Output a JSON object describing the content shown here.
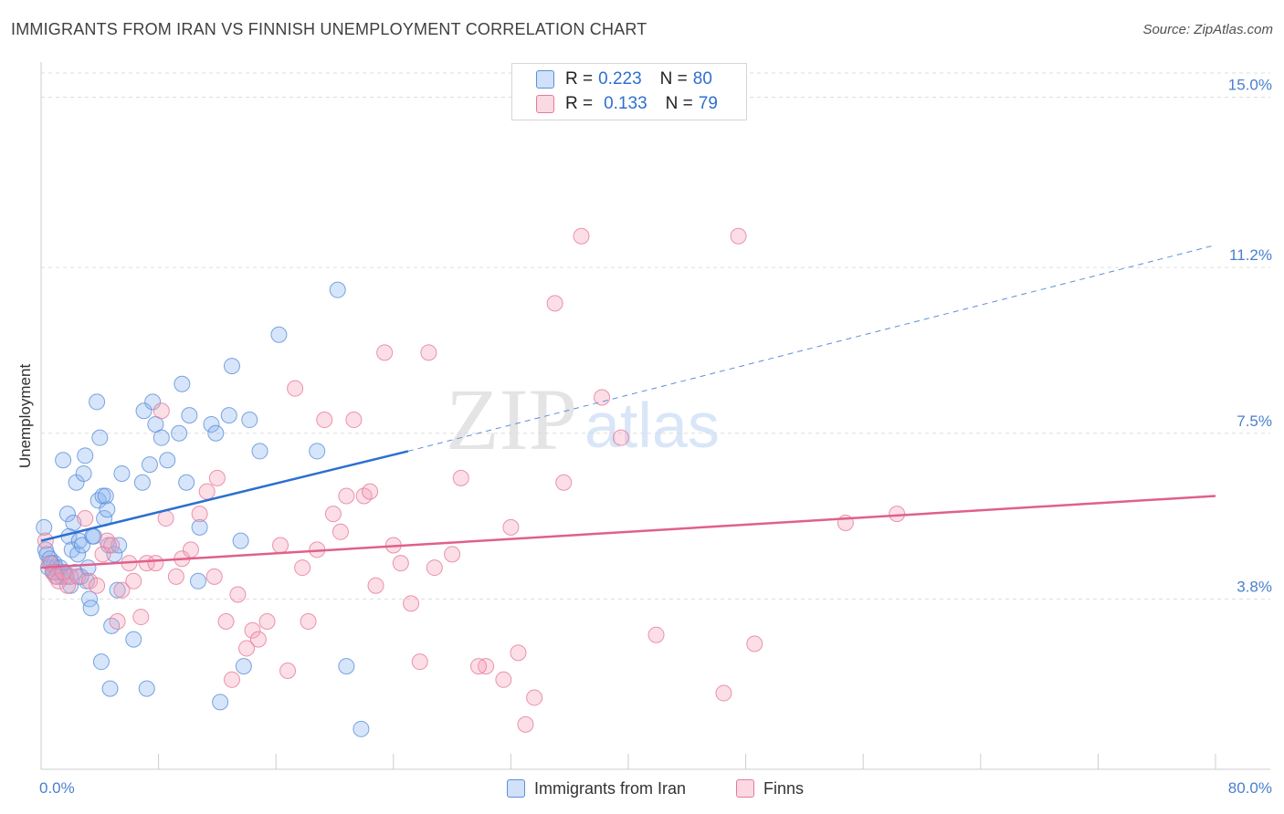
{
  "title": "IMMIGRANTS FROM IRAN VS FINNISH UNEMPLOYMENT CORRELATION CHART",
  "source": "Source: ZipAtlas.com",
  "watermark": {
    "zip": "ZIP",
    "atlas": "atlas"
  },
  "legend": {
    "rows": [
      {
        "r_label": "R =",
        "r_value": "0.223",
        "n_label": "N =",
        "n_value": "80",
        "color": "#8ab4f0"
      },
      {
        "r_label": "R =",
        "r_value": "0.133",
        "n_label": "N =",
        "n_value": "79",
        "color": "#f5a0b8"
      }
    ]
  },
  "bottom_legend": [
    {
      "label": "Immigrants from Iran",
      "color": "#8ab4f0"
    },
    {
      "label": "Finns",
      "color": "#f5a0b8"
    }
  ],
  "chart_data": {
    "type": "scatter",
    "title": "IMMIGRANTS FROM IRAN VS FINNISH UNEMPLOYMENT CORRELATION CHART",
    "xlabel": "",
    "ylabel": "Unemployment",
    "xlim": [
      0,
      80
    ],
    "ylim": [
      0,
      15.5
    ],
    "x_tick_labels": [
      {
        "value": 0,
        "label": "0.0%"
      },
      {
        "value": 80,
        "label": "80.0%"
      }
    ],
    "y_tick_labels": [
      {
        "value": 3.8,
        "label": "3.8%"
      },
      {
        "value": 7.5,
        "label": "7.5%"
      },
      {
        "value": 11.2,
        "label": "11.2%"
      },
      {
        "value": 15.0,
        "label": "15.0%"
      }
    ],
    "series": [
      {
        "name": "Immigrants from Iran",
        "color": "#8ab4f0",
        "stroke": "#5b8fd8",
        "trend": {
          "x0": 0,
          "y0": 5.1,
          "x1": 25,
          "y1": 7.1,
          "x_ext": 80,
          "y_ext": 11.7
        },
        "points": [
          [
            0.2,
            5.4
          ],
          [
            0.3,
            4.9
          ],
          [
            0.4,
            4.8
          ],
          [
            0.5,
            4.5
          ],
          [
            0.6,
            4.7
          ],
          [
            0.8,
            4.4
          ],
          [
            0.9,
            4.6
          ],
          [
            1.0,
            4.5
          ],
          [
            1.2,
            4.4
          ],
          [
            1.4,
            4.3
          ],
          [
            1.5,
            6.9
          ],
          [
            1.6,
            4.4
          ],
          [
            1.8,
            5.7
          ],
          [
            1.9,
            5.2
          ],
          [
            2.0,
            4.1
          ],
          [
            2.1,
            4.9
          ],
          [
            2.2,
            5.5
          ],
          [
            2.4,
            6.4
          ],
          [
            2.5,
            4.8
          ],
          [
            2.6,
            5.1
          ],
          [
            2.8,
            5.0
          ],
          [
            2.9,
            6.6
          ],
          [
            3.0,
            7.0
          ],
          [
            3.1,
            4.2
          ],
          [
            3.3,
            3.8
          ],
          [
            3.4,
            3.6
          ],
          [
            3.6,
            5.2
          ],
          [
            3.8,
            8.2
          ],
          [
            3.9,
            6.0
          ],
          [
            4.0,
            7.4
          ],
          [
            4.1,
            2.4
          ],
          [
            4.2,
            6.1
          ],
          [
            4.3,
            5.6
          ],
          [
            4.5,
            5.8
          ],
          [
            4.6,
            5.0
          ],
          [
            4.7,
            1.8
          ],
          [
            4.8,
            3.2
          ],
          [
            5.0,
            4.8
          ],
          [
            5.2,
            4.0
          ],
          [
            5.3,
            5.0
          ],
          [
            5.5,
            6.6
          ],
          [
            6.3,
            2.9
          ],
          [
            6.9,
            6.4
          ],
          [
            7.0,
            8.0
          ],
          [
            7.2,
            1.8
          ],
          [
            7.4,
            6.8
          ],
          [
            7.6,
            8.2
          ],
          [
            7.8,
            7.7
          ],
          [
            8.2,
            7.4
          ],
          [
            8.6,
            6.9
          ],
          [
            9.4,
            7.5
          ],
          [
            9.6,
            8.6
          ],
          [
            9.9,
            6.4
          ],
          [
            10.1,
            7.9
          ],
          [
            10.7,
            4.2
          ],
          [
            10.8,
            5.4
          ],
          [
            11.6,
            7.7
          ],
          [
            11.9,
            7.5
          ],
          [
            12.2,
            1.5
          ],
          [
            12.8,
            7.9
          ],
          [
            13.0,
            9.0
          ],
          [
            13.6,
            5.1
          ],
          [
            13.8,
            2.3
          ],
          [
            14.2,
            7.8
          ],
          [
            14.9,
            7.1
          ],
          [
            16.2,
            9.7
          ],
          [
            18.8,
            7.1
          ],
          [
            20.2,
            10.7
          ],
          [
            20.8,
            2.3
          ],
          [
            21.8,
            0.9
          ],
          [
            1.1,
            4.3
          ],
          [
            0.7,
            4.6
          ],
          [
            2.3,
            4.4
          ],
          [
            3.5,
            5.2
          ],
          [
            1.3,
            4.5
          ],
          [
            0.9,
            4.4
          ],
          [
            2.7,
            4.3
          ],
          [
            1.7,
            4.3
          ],
          [
            4.4,
            6.1
          ],
          [
            3.2,
            4.5
          ]
        ]
      },
      {
        "name": "Finns",
        "color": "#f5a0b8",
        "stroke": "#e57a9c",
        "trend": {
          "x0": 0,
          "y0": 4.5,
          "x1": 80,
          "y1": 6.1
        },
        "points": [
          [
            0.3,
            5.1
          ],
          [
            0.6,
            4.6
          ],
          [
            0.8,
            4.4
          ],
          [
            1.0,
            4.3
          ],
          [
            1.2,
            4.2
          ],
          [
            1.5,
            4.4
          ],
          [
            1.8,
            4.1
          ],
          [
            2.0,
            4.3
          ],
          [
            2.5,
            4.3
          ],
          [
            3.0,
            5.6
          ],
          [
            3.3,
            4.2
          ],
          [
            3.8,
            4.1
          ],
          [
            4.2,
            4.8
          ],
          [
            4.5,
            5.1
          ],
          [
            4.8,
            5.0
          ],
          [
            5.2,
            3.3
          ],
          [
            5.5,
            4.0
          ],
          [
            6.0,
            4.6
          ],
          [
            6.3,
            4.2
          ],
          [
            6.8,
            3.4
          ],
          [
            7.2,
            4.6
          ],
          [
            7.8,
            4.6
          ],
          [
            8.2,
            8.0
          ],
          [
            8.5,
            5.6
          ],
          [
            9.2,
            4.3
          ],
          [
            9.6,
            4.7
          ],
          [
            10.2,
            4.9
          ],
          [
            10.8,
            5.7
          ],
          [
            11.3,
            6.2
          ],
          [
            11.8,
            4.3
          ],
          [
            12.0,
            6.5
          ],
          [
            12.6,
            3.3
          ],
          [
            13.0,
            2.0
          ],
          [
            13.4,
            3.9
          ],
          [
            14.0,
            2.7
          ],
          [
            14.4,
            3.1
          ],
          [
            14.8,
            2.9
          ],
          [
            15.4,
            3.3
          ],
          [
            16.3,
            5.0
          ],
          [
            16.8,
            2.2
          ],
          [
            17.3,
            8.5
          ],
          [
            17.8,
            4.5
          ],
          [
            18.2,
            3.3
          ],
          [
            18.8,
            4.9
          ],
          [
            19.3,
            7.8
          ],
          [
            19.9,
            5.7
          ],
          [
            20.4,
            5.3
          ],
          [
            20.8,
            6.1
          ],
          [
            21.3,
            7.8
          ],
          [
            22.0,
            6.1
          ],
          [
            22.4,
            6.2
          ],
          [
            22.8,
            4.1
          ],
          [
            23.4,
            9.3
          ],
          [
            24.0,
            5.0
          ],
          [
            24.5,
            4.6
          ],
          [
            25.2,
            3.7
          ],
          [
            25.8,
            2.4
          ],
          [
            26.4,
            9.3
          ],
          [
            26.8,
            4.5
          ],
          [
            28.0,
            4.8
          ],
          [
            28.6,
            6.5
          ],
          [
            30.3,
            2.3
          ],
          [
            31.5,
            2.0
          ],
          [
            32.0,
            5.4
          ],
          [
            32.5,
            2.6
          ],
          [
            33.0,
            1.0
          ],
          [
            33.6,
            1.6
          ],
          [
            35.0,
            10.4
          ],
          [
            35.6,
            6.4
          ],
          [
            36.8,
            11.9
          ],
          [
            38.2,
            8.3
          ],
          [
            39.5,
            7.4
          ],
          [
            41.9,
            3.0
          ],
          [
            46.5,
            1.7
          ],
          [
            47.5,
            11.9
          ],
          [
            48.6,
            2.8
          ],
          [
            54.8,
            5.5
          ],
          [
            58.3,
            5.7
          ],
          [
            29.8,
            2.3
          ]
        ]
      }
    ]
  }
}
